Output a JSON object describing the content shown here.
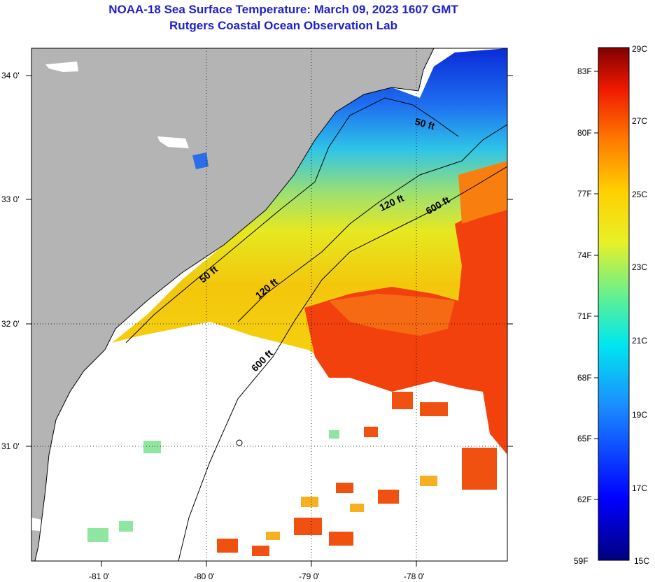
{
  "header": {
    "title": "NOAA-18 Sea Surface Temperature:  March 09, 2023 1607 GMT",
    "subtitle": "Rutgers Coastal Ocean Observation Lab"
  },
  "axes": {
    "lat_labels": [
      "34 0'",
      "33 0'",
      "32 0'",
      "31 0'"
    ],
    "lon_labels": [
      "-81 0'",
      "-80 0'",
      "-79 0'",
      "-78 0'"
    ]
  },
  "contours": {
    "labels": [
      "50 ft",
      "120 ft",
      "600 ft",
      "50 ft",
      "120 ft",
      "600 ft"
    ]
  },
  "colorbar": {
    "f_labels": [
      "83F",
      "80F",
      "77F",
      "74F",
      "71F",
      "68F",
      "65F",
      "62F",
      "59F"
    ],
    "c_labels": [
      "29C",
      "27C",
      "25C",
      "23C",
      "21C",
      "19C",
      "17C",
      "15C"
    ]
  },
  "colors": {
    "title": "#1f1fcc",
    "land": "#b4b4b4",
    "cloud": "#ffffff"
  }
}
